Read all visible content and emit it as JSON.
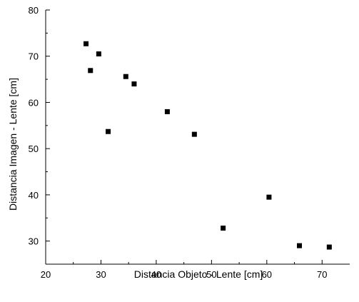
{
  "chart_data": {
    "type": "scatter",
    "title": "",
    "xlabel": "Distancia Objeto - Lente [cm]",
    "ylabel": "Distancia Imagen - Lente [cm]",
    "xlim": [
      20,
      75
    ],
    "ylim": [
      25,
      80
    ],
    "xticks": [
      20,
      30,
      40,
      50,
      60,
      70
    ],
    "yticks": [
      30,
      40,
      50,
      60,
      70,
      80
    ],
    "grid": false,
    "marker": "square",
    "marker_color": "#000000",
    "series": [
      {
        "points": [
          {
            "x": 27.3,
            "y": 72.7
          },
          {
            "x": 28.1,
            "y": 66.9
          },
          {
            "x": 29.6,
            "y": 70.5
          },
          {
            "x": 31.3,
            "y": 53.7
          },
          {
            "x": 34.5,
            "y": 65.6
          },
          {
            "x": 36.0,
            "y": 64.0
          },
          {
            "x": 42.0,
            "y": 58.0
          },
          {
            "x": 46.9,
            "y": 53.1
          },
          {
            "x": 52.1,
            "y": 32.8
          },
          {
            "x": 60.4,
            "y": 39.5
          },
          {
            "x": 65.9,
            "y": 29.0
          },
          {
            "x": 71.3,
            "y": 28.7
          }
        ]
      }
    ]
  }
}
